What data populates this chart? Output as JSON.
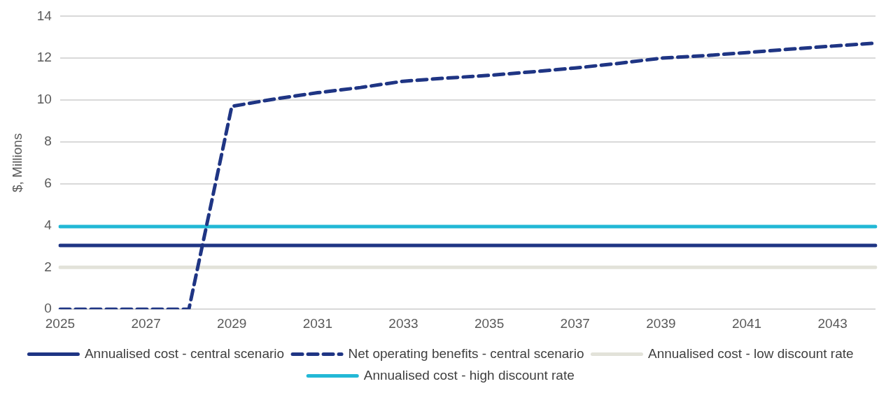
{
  "chart_data": {
    "type": "line",
    "ylabel": "$, Millions",
    "categories": [
      "2025",
      null,
      "2027",
      null,
      "2029",
      null,
      "2031",
      null,
      "2033",
      null,
      "2035",
      null,
      "2037",
      null,
      "2039",
      null,
      "2041",
      null,
      "2043",
      null
    ],
    "series": [
      {
        "name": "Annualised cost - central scenario",
        "color": "#1f3584",
        "line_style": "solid",
        "values": [
          3.05,
          3.05,
          3.05,
          3.05,
          3.05,
          3.05,
          3.05,
          3.05,
          3.05,
          3.05,
          3.05,
          3.05,
          3.05,
          3.05,
          3.05,
          3.05,
          3.05,
          3.05,
          3.05,
          3.05
        ]
      },
      {
        "name": "Net operating benefits - central scenario",
        "color": "#1f3584",
        "line_style": "dashed",
        "values": [
          0,
          0,
          0,
          0,
          9.7,
          10.05,
          10.35,
          10.6,
          10.9,
          11.05,
          11.18,
          11.35,
          11.53,
          11.75,
          12.0,
          12.12,
          12.27,
          12.43,
          12.58,
          12.72
        ]
      },
      {
        "name": "Annualised cost - low discount rate",
        "color": "#e2e2d9",
        "line_style": "solid",
        "values": [
          2,
          2,
          2,
          2,
          2,
          2,
          2,
          2,
          2,
          2,
          2,
          2,
          2,
          2,
          2,
          2,
          2,
          2,
          2,
          2
        ]
      },
      {
        "name": "Annualised cost - high discount rate",
        "color": "#22b8d6",
        "line_style": "solid",
        "values": [
          3.95,
          3.95,
          3.95,
          3.95,
          3.95,
          3.95,
          3.95,
          3.95,
          3.95,
          3.95,
          3.95,
          3.95,
          3.95,
          3.95,
          3.95,
          3.95,
          3.95,
          3.95,
          3.95,
          3.95
        ]
      }
    ],
    "ylim": [
      0,
      14
    ],
    "yticks": [
      0,
      2,
      4,
      6,
      8,
      10,
      12,
      14
    ],
    "grid": "y",
    "legend": "bottom",
    "marker": "none"
  }
}
